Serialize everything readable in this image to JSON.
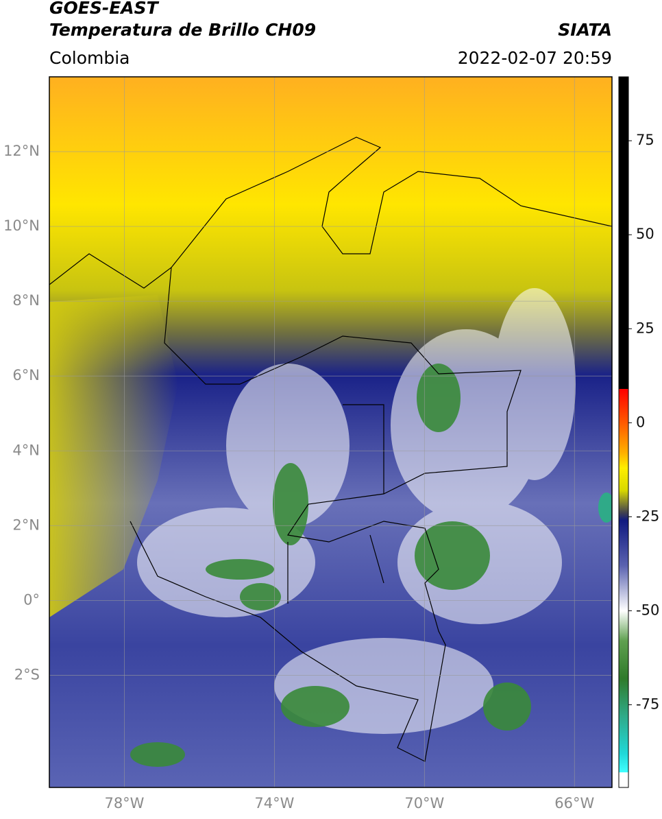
{
  "header": {
    "title_line1": "GOES-EAST",
    "title_line2": "Temperatura de Brillo CH09",
    "source": "SIATA",
    "region": "Colombia",
    "datetime": "2022-02-07 20:59"
  },
  "map": {
    "lon_range": [
      -80,
      -65
    ],
    "lat_range": [
      -5,
      14
    ],
    "grid": true,
    "lon_ticks": [
      {
        "value": -78,
        "label": "78°W"
      },
      {
        "value": -74,
        "label": "74°W"
      },
      {
        "value": -70,
        "label": "70°W"
      },
      {
        "value": -66,
        "label": "66°W"
      }
    ],
    "lat_ticks": [
      {
        "value": 12,
        "label": "12°N"
      },
      {
        "value": 10,
        "label": "10°N"
      },
      {
        "value": 8,
        "label": "8°N"
      },
      {
        "value": 6,
        "label": "6°N"
      },
      {
        "value": 4,
        "label": "4°N"
      },
      {
        "value": 2,
        "label": "2°N"
      },
      {
        "value": 0,
        "label": "0°"
      },
      {
        "value": -2,
        "label": "2°S"
      }
    ]
  },
  "colorbar": {
    "range": [
      -97,
      92
    ],
    "ticks": [
      75,
      50,
      25,
      0,
      -25,
      -50,
      -75
    ],
    "stops": [
      {
        "value": 92,
        "color": "#000000"
      },
      {
        "value": 9,
        "color": "#000000"
      },
      {
        "value": 9,
        "color": "#ff0000"
      },
      {
        "value": 0,
        "color": "#ff5a00"
      },
      {
        "value": -8,
        "color": "#ffb000"
      },
      {
        "value": -12,
        "color": "#ffee00"
      },
      {
        "value": -18,
        "color": "#d8d800"
      },
      {
        "value": -21,
        "color": "#8a8a2a"
      },
      {
        "value": -24,
        "color": "#404050"
      },
      {
        "value": -26,
        "color": "#101a80"
      },
      {
        "value": -38,
        "color": "#5a62b0"
      },
      {
        "value": -50,
        "color": "#ffffff"
      },
      {
        "value": -58,
        "color": "#5fa050"
      },
      {
        "value": -68,
        "color": "#2f7a2a"
      },
      {
        "value": -78,
        "color": "#2faa88"
      },
      {
        "value": -88,
        "color": "#20d8d8"
      },
      {
        "value": -93,
        "color": "#40ffff"
      },
      {
        "value": -93,
        "color": "#ffffff"
      },
      {
        "value": -97,
        "color": "#ffffff"
      }
    ]
  }
}
